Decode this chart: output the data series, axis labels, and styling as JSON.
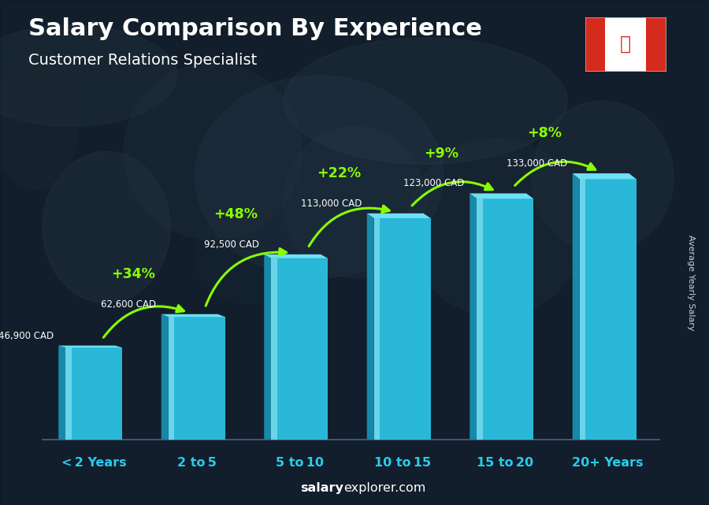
{
  "title": "Salary Comparison By Experience",
  "subtitle": "Customer Relations Specialist",
  "categories": [
    "< 2 Years",
    "2 to 5",
    "5 to 10",
    "10 to 15",
    "15 to 20",
    "20+ Years"
  ],
  "values": [
    46900,
    62600,
    92500,
    113000,
    123000,
    133000
  ],
  "salary_labels": [
    "46,900 CAD",
    "62,600 CAD",
    "92,500 CAD",
    "113,000 CAD",
    "123,000 CAD",
    "133,000 CAD"
  ],
  "pct_labels": [
    "+34%",
    "+48%",
    "+22%",
    "+9%",
    "+8%"
  ],
  "bar_face_color": "#29B8D8",
  "bar_side_color": "#1788A8",
  "bar_top_color": "#6DE0F5",
  "bar_highlight_color": "#A0EEFA",
  "pct_color": "#88FF00",
  "salary_label_color": "#FFFFFF",
  "title_color": "#FFFFFF",
  "subtitle_color": "#FFFFFF",
  "xlabel_color": "#29CCEE",
  "ylabel_text": "Average Yearly Salary",
  "footer_salary_color": "#FFFFFF",
  "footer_bold": "salary",
  "bg_overlay_color": "#0A1520",
  "bg_overlay_alpha": 0.55,
  "ylim": [
    0,
    160000
  ],
  "bar_bottom": 0,
  "n_bars": 6
}
